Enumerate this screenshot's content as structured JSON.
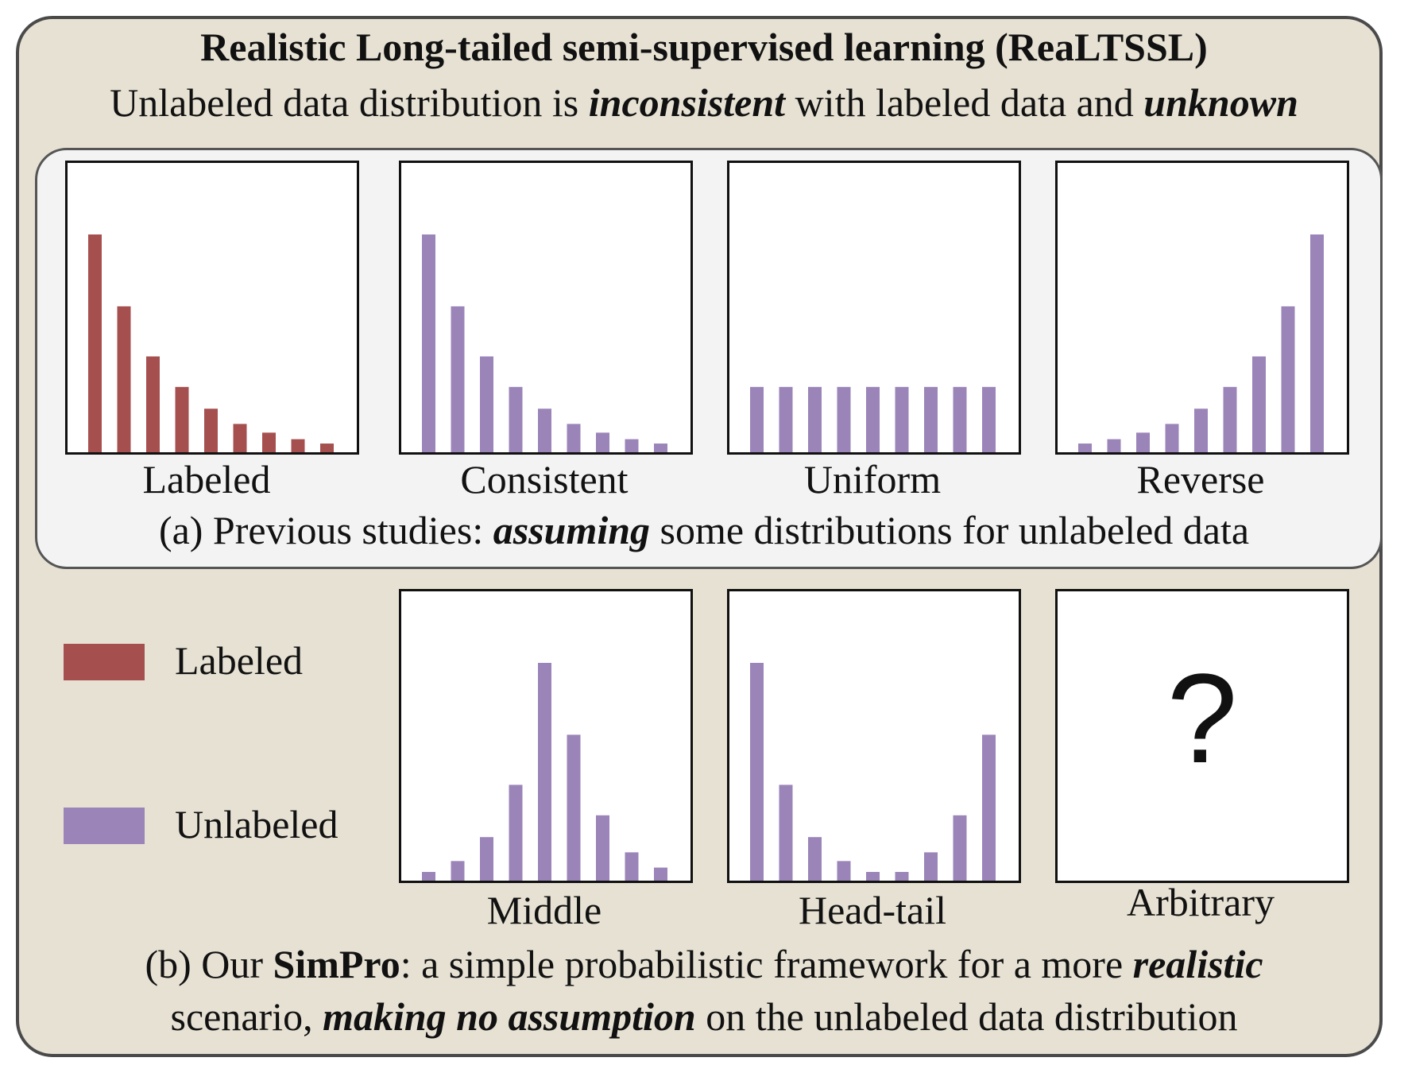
{
  "title": "Realistic Long-tailed semi-supervised learning (ReaLTSSL)",
  "subtitle": {
    "part1": "Unlabeled data distribution is ",
    "em1": "inconsistent",
    "part2": " with labeled data and ",
    "em2": "unknown"
  },
  "caption_a": {
    "part1": "(a) Previous studies: ",
    "em": "assuming",
    "part2": " some distributions for unlabeled data"
  },
  "caption_b": {
    "line1_part1": "(b) Our ",
    "line1_bold": "SimPro",
    "line1_part2": ": a simple probabilistic framework for a more ",
    "line1_em": "realistic",
    "line2_part1": "scenario, ",
    "line2_em": "making no assumption",
    "line2_part2": " on the unlabeled data distribution"
  },
  "legend": [
    {
      "label": "Labeled",
      "color": "#a5504f"
    },
    {
      "label": "Unlabeled",
      "color": "#9b84b8"
    }
  ],
  "unknown_symbol": "?",
  "colors": {
    "labeled": "#a5504f",
    "unlabeled": "#9b84b8",
    "outer_bg": "#e6e1d3",
    "inner_bg": "#f3f3f3"
  },
  "chart_data": [
    {
      "type": "bar",
      "title": "Labeled",
      "series": "labeled",
      "values": [
        100,
        67,
        44,
        30,
        20,
        13,
        9,
        6,
        4
      ]
    },
    {
      "type": "bar",
      "title": "Consistent",
      "series": "unlabeled",
      "values": [
        100,
        67,
        44,
        30,
        20,
        13,
        9,
        6,
        4
      ]
    },
    {
      "type": "bar",
      "title": "Uniform",
      "series": "unlabeled",
      "values": [
        30,
        30,
        30,
        30,
        30,
        30,
        30,
        30,
        30
      ]
    },
    {
      "type": "bar",
      "title": "Reverse",
      "series": "unlabeled",
      "values": [
        4,
        6,
        9,
        13,
        20,
        30,
        44,
        67,
        100
      ]
    },
    {
      "type": "bar",
      "title": "Middle",
      "series": "unlabeled",
      "values": [
        4,
        9,
        20,
        44,
        100,
        67,
        30,
        13,
        6
      ]
    },
    {
      "type": "bar",
      "title": "Head-tail",
      "series": "unlabeled",
      "values": [
        100,
        44,
        20,
        9,
        4,
        4,
        13,
        30,
        67
      ]
    },
    {
      "type": "bar",
      "title": "Arbitrary",
      "series": "unlabeled",
      "values": []
    }
  ]
}
